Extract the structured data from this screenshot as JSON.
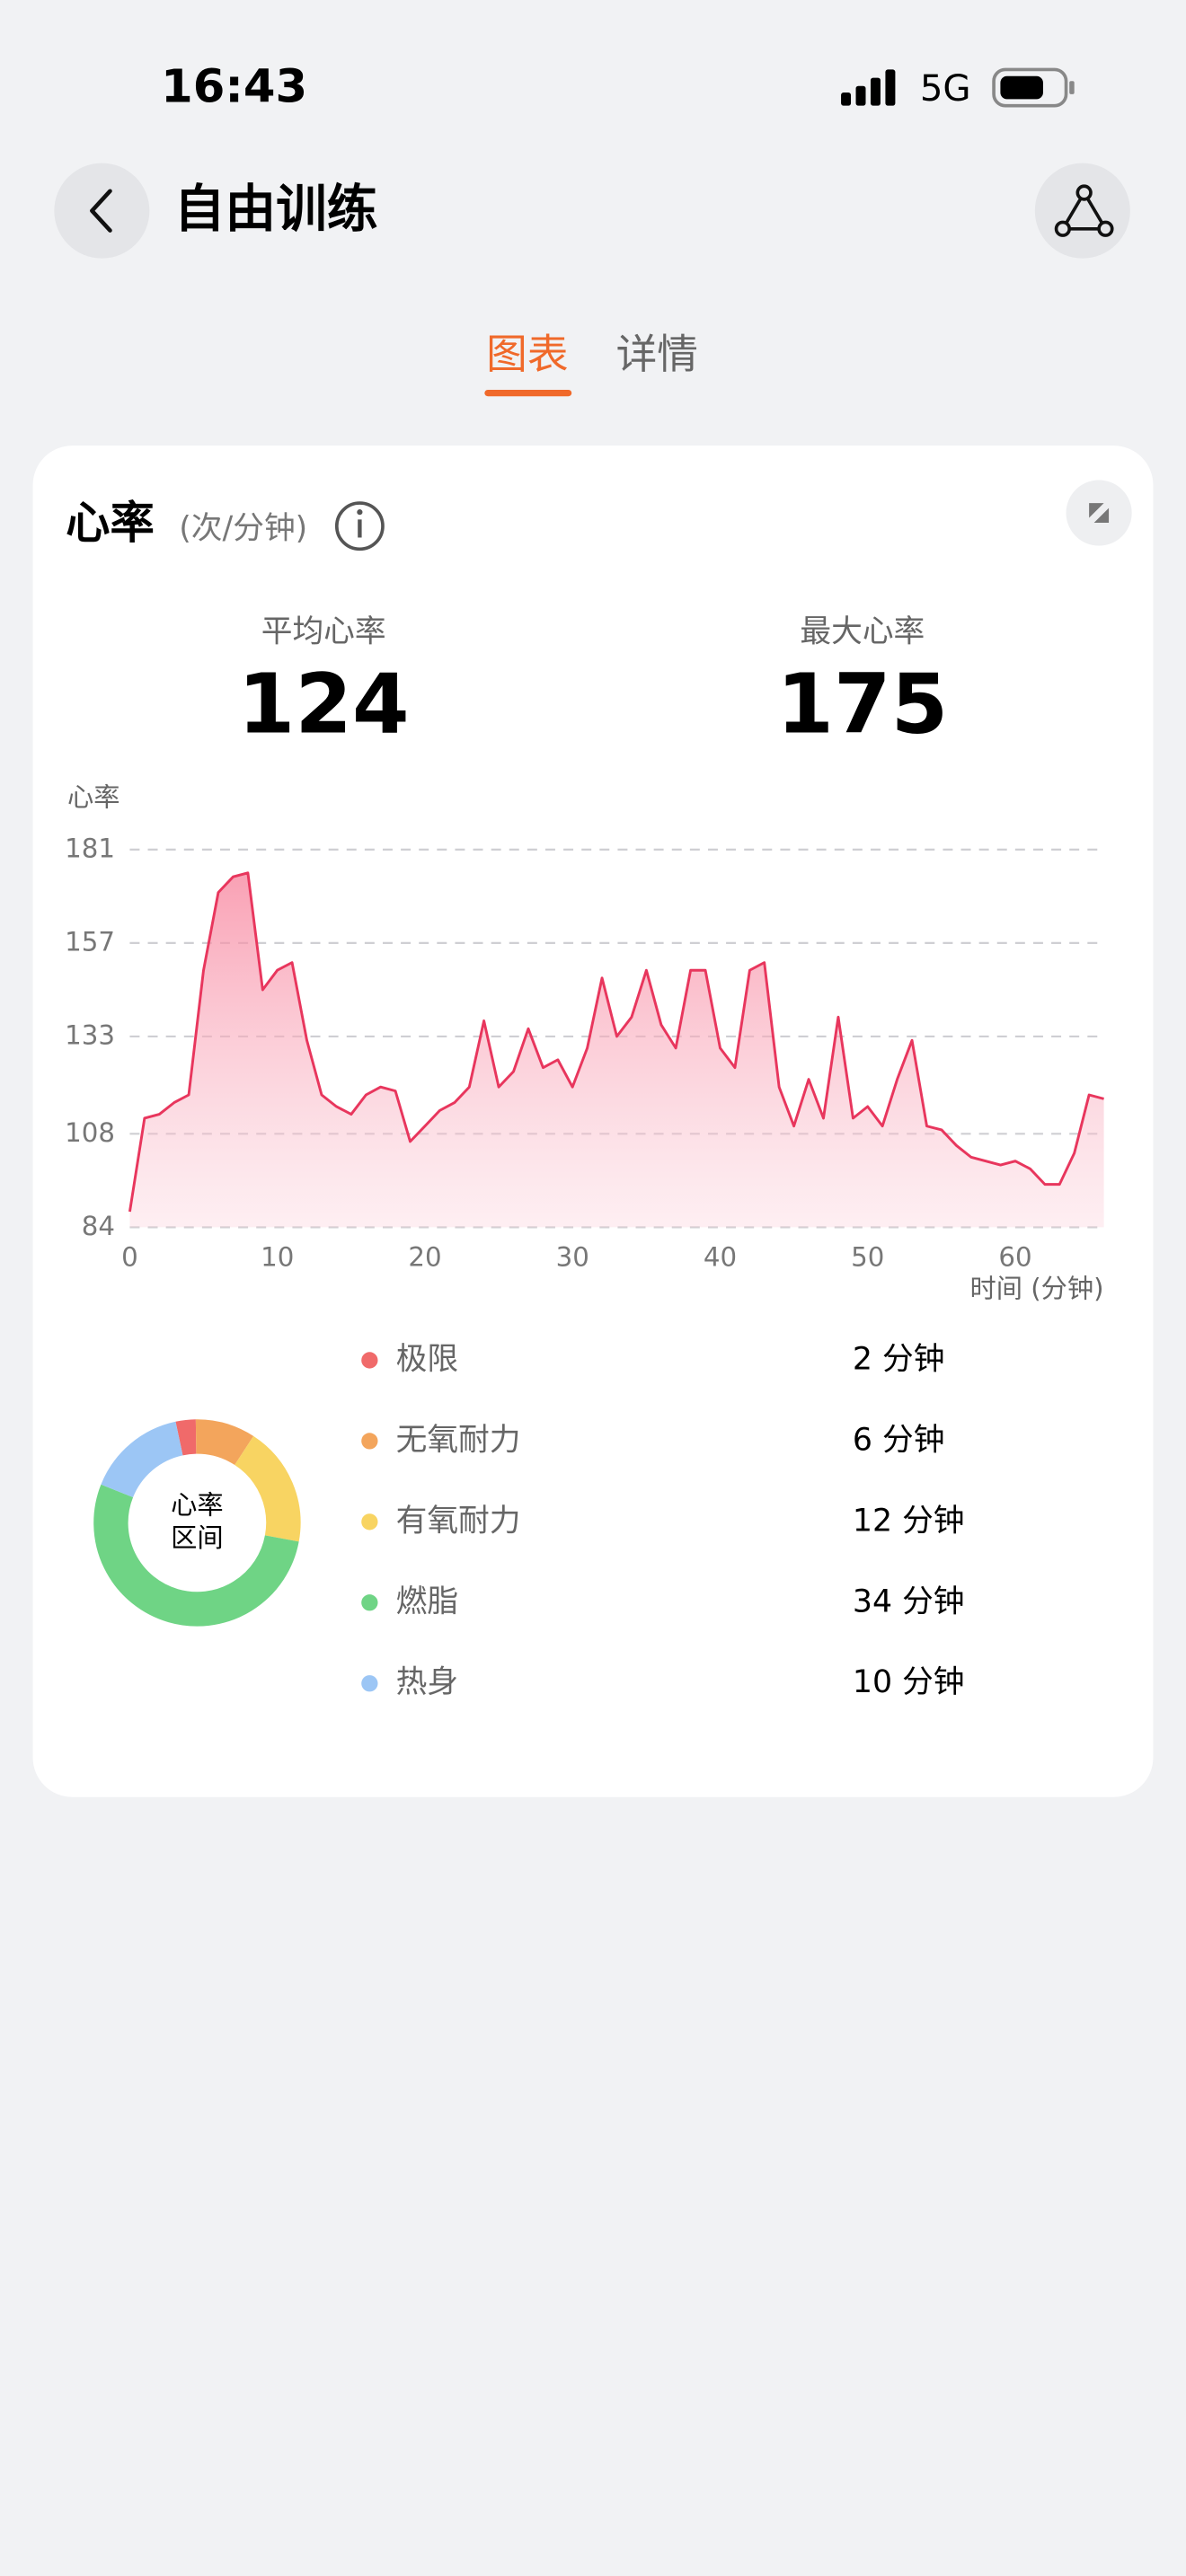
{
  "status_bar": {
    "time": "16:43",
    "network": "5G"
  },
  "header": {
    "title": "自由训练"
  },
  "tabs": [
    "图表",
    "详情"
  ],
  "card": {
    "title": "心率",
    "unit": "(次/分钟)",
    "stats": [
      {
        "label": "平均心率",
        "value": 124
      },
      {
        "label": "最大心率",
        "value": 175
      }
    ]
  },
  "chart_data": [
    {
      "type": "line",
      "ylabel": "心率",
      "xlabel": "时间 (分钟)",
      "x": [
        0,
        1,
        2,
        3,
        4,
        5,
        6,
        7,
        8,
        9,
        10,
        11,
        12,
        13,
        14,
        15,
        16,
        17,
        18,
        19,
        20,
        21,
        22,
        23,
        24,
        25,
        26,
        27,
        28,
        29,
        30,
        31,
        32,
        33,
        34,
        35,
        36,
        37,
        38,
        39,
        40,
        41,
        42,
        43,
        44,
        45,
        46,
        47,
        48,
        49,
        50,
        51,
        52,
        53,
        54,
        55,
        56,
        57,
        58,
        59,
        60,
        61,
        62,
        63,
        64,
        65,
        66
      ],
      "series": [
        {
          "color": "#e8365d",
          "values": [
            88,
            112,
            113,
            116,
            118,
            150,
            170,
            174,
            175,
            145,
            150,
            152,
            132,
            118,
            115,
            113,
            118,
            120,
            119,
            106,
            110,
            114,
            116,
            120,
            137,
            120,
            124,
            135,
            125,
            127,
            120,
            130,
            148,
            133,
            138,
            150,
            136,
            130,
            150,
            150,
            130,
            125,
            150,
            152,
            120,
            110,
            122,
            112,
            138,
            112,
            115,
            110,
            122,
            132,
            110,
            109,
            105,
            102,
            101,
            100,
            101,
            99,
            95,
            95,
            103,
            118,
            117
          ]
        }
      ],
      "xlim": [
        0,
        66
      ],
      "ylim": [
        84,
        181
      ],
      "xticks": [
        0,
        10,
        20,
        30,
        40,
        50,
        60
      ],
      "yticks": [
        84,
        108,
        133,
        157,
        181
      ],
      "grid": true
    },
    {
      "type": "donut",
      "center_label": [
        "心率",
        "区间"
      ],
      "categories": [
        "极限",
        "无氧耐力",
        "有氧耐力",
        "燃脂",
        "热身"
      ],
      "values": [
        2,
        6,
        12,
        34,
        10
      ],
      "value_labels": [
        "2 分钟",
        "6 分钟",
        "12 分钟",
        "34 分钟",
        "10 分钟"
      ],
      "colors": [
        "#f06a6a",
        "#f3a55c",
        "#f8d462",
        "#6fd485",
        "#9cc6f5"
      ]
    }
  ]
}
